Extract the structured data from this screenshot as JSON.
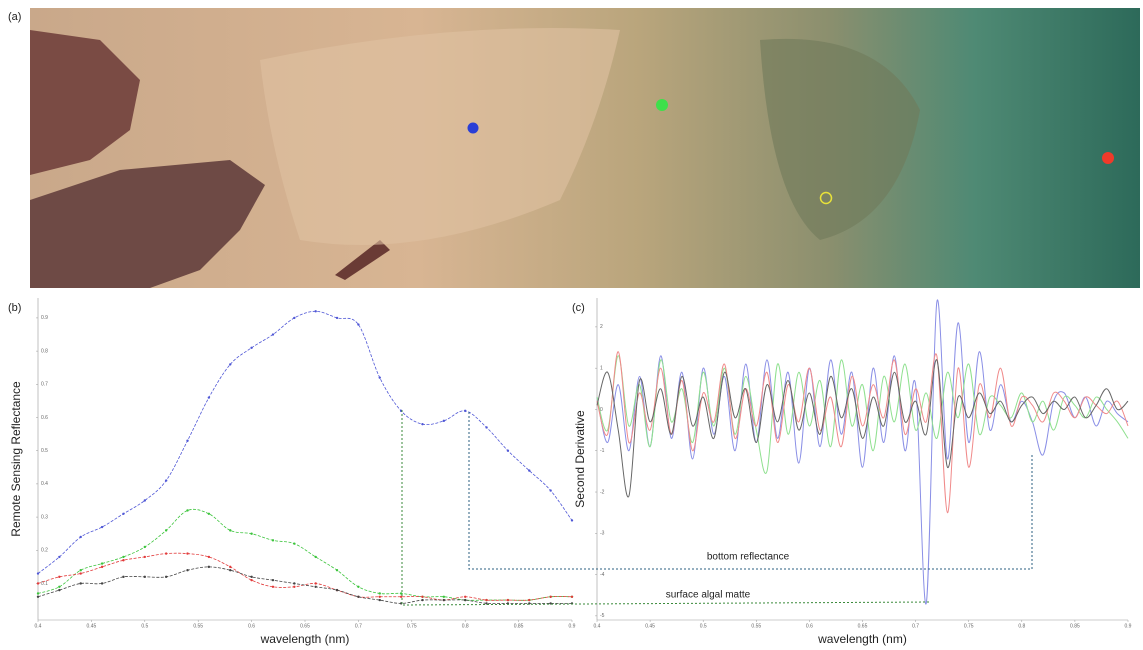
{
  "image_panel": {
    "label": "(a)"
  },
  "chart_data": [
    {
      "type": "line",
      "label": "(b)",
      "xlabel": "wavelength (nm)",
      "ylabel": "Remote Sensing Reflectance",
      "x": [
        0.4,
        0.42,
        0.44,
        0.46,
        0.48,
        0.5,
        0.52,
        0.54,
        0.56,
        0.58,
        0.6,
        0.62,
        0.64,
        0.66,
        0.68,
        0.7,
        0.72,
        0.74,
        0.76,
        0.78,
        0.8,
        0.82,
        0.84,
        0.86,
        0.88,
        0.9
      ],
      "xlim": [
        0.4,
        0.9
      ],
      "xticks": [
        0.4,
        0.45,
        0.5,
        0.55,
        0.6,
        0.65,
        0.7,
        0.75,
        0.8,
        0.85,
        0.9
      ],
      "ylim": [
        -0.01,
        0.96
      ],
      "yticks": [
        0.1,
        0.2,
        0.3,
        0.4,
        0.5,
        0.6,
        0.7,
        0.8,
        0.9
      ],
      "markers": true,
      "series": [
        {
          "color": "#4f57d6",
          "values": [
            0.13,
            0.18,
            0.24,
            0.27,
            0.31,
            0.35,
            0.41,
            0.53,
            0.66,
            0.76,
            0.81,
            0.85,
            0.9,
            0.92,
            0.9,
            0.88,
            0.72,
            0.62,
            0.58,
            0.59,
            0.62,
            0.57,
            0.5,
            0.44,
            0.38,
            0.29
          ]
        },
        {
          "color": "#3cc43c",
          "values": [
            0.07,
            0.09,
            0.14,
            0.16,
            0.18,
            0.21,
            0.26,
            0.32,
            0.31,
            0.26,
            0.25,
            0.23,
            0.22,
            0.18,
            0.14,
            0.09,
            0.07,
            0.07,
            0.06,
            0.06,
            0.05,
            0.05,
            0.05,
            0.05,
            0.06,
            0.06
          ]
        },
        {
          "color": "#e23a3a",
          "values": [
            0.1,
            0.12,
            0.13,
            0.15,
            0.17,
            0.18,
            0.19,
            0.19,
            0.18,
            0.15,
            0.11,
            0.09,
            0.09,
            0.1,
            0.08,
            0.06,
            0.06,
            0.06,
            0.06,
            0.05,
            0.06,
            0.05,
            0.05,
            0.05,
            0.06,
            0.06
          ]
        },
        {
          "color": "#444444",
          "values": [
            0.06,
            0.08,
            0.1,
            0.1,
            0.12,
            0.12,
            0.12,
            0.14,
            0.15,
            0.14,
            0.12,
            0.11,
            0.1,
            0.09,
            0.08,
            0.06,
            0.05,
            0.04,
            0.05,
            0.05,
            0.05,
            0.04,
            0.04,
            0.04,
            0.04,
            0.04
          ]
        }
      ]
    },
    {
      "type": "line",
      "label": "(c)",
      "xlabel": "wavelength (nm)",
      "ylabel": "Second Derivative",
      "x": [
        0.4,
        0.41,
        0.42,
        0.43,
        0.44,
        0.45,
        0.46,
        0.47,
        0.48,
        0.49,
        0.5,
        0.51,
        0.52,
        0.53,
        0.54,
        0.55,
        0.56,
        0.57,
        0.58,
        0.59,
        0.6,
        0.61,
        0.62,
        0.63,
        0.64,
        0.65,
        0.66,
        0.67,
        0.68,
        0.69,
        0.7,
        0.71,
        0.72,
        0.73,
        0.74,
        0.75,
        0.76,
        0.77,
        0.78,
        0.79,
        0.8,
        0.81,
        0.82,
        0.83,
        0.84,
        0.85,
        0.86,
        0.87,
        0.88,
        0.89,
        0.9
      ],
      "xlim": [
        0.4,
        0.9
      ],
      "xticks": [
        0.4,
        0.45,
        0.5,
        0.55,
        0.6,
        0.65,
        0.7,
        0.75,
        0.8,
        0.85,
        0.9
      ],
      "ylim": [
        -5.1,
        2.7
      ],
      "yticks": [
        -5,
        -4,
        -3,
        -2,
        -1,
        0,
        1,
        2
      ],
      "markers": false,
      "annotations": [
        {
          "text": "bottom reflectance",
          "color": "#2b6f99"
        },
        {
          "text": "surface algal matte",
          "color": "#5a9e3a"
        }
      ],
      "series": [
        {
          "color": "#8a8fe6",
          "values": [
            0.3,
            -0.8,
            0.6,
            -1.0,
            0.8,
            -0.9,
            1.3,
            -0.7,
            0.9,
            -1.2,
            1.0,
            -0.6,
            0.8,
            -1.0,
            1.1,
            -0.8,
            1.2,
            -0.7,
            0.9,
            -1.3,
            1.0,
            -0.9,
            1.2,
            -0.6,
            0.9,
            -1.4,
            1.0,
            -0.8,
            1.3,
            -1.0,
            0.6,
            -4.7,
            2.6,
            -1.2,
            2.1,
            -0.8,
            1.4,
            -0.5,
            0.6,
            -0.3,
            0.2,
            -0.3,
            -1.1,
            0.2,
            0.4,
            -0.2,
            0.3,
            -0.4,
            0.2,
            -0.1,
            -0.3
          ]
        },
        {
          "color": "#8fe08f",
          "values": [
            0.3,
            -0.5,
            1.3,
            -0.4,
            0.6,
            -0.9,
            1.2,
            -0.3,
            0.5,
            -0.8,
            0.9,
            -0.4,
            1.0,
            -0.6,
            0.8,
            -0.5,
            -1.5,
            1.1,
            -0.6,
            0.9,
            -0.4,
            0.7,
            -0.9,
            1.2,
            -0.4,
            0.6,
            -1.0,
            0.8,
            -0.3,
            1.1,
            -0.5,
            0.4,
            -0.7,
            0.9,
            -0.2,
            1.1,
            -0.6,
            0.3,
            0.1,
            -0.2,
            0.4,
            -0.3,
            0.2,
            -0.5,
            0.3,
            0.1,
            -0.2,
            0.3,
            0.0,
            -0.3,
            -0.7
          ]
        },
        {
          "color": "#f08a8a",
          "values": [
            0.2,
            -0.6,
            1.4,
            -0.8,
            0.4,
            -0.5,
            1.0,
            -0.6,
            0.7,
            -1.0,
            0.4,
            -0.3,
            1.1,
            -0.7,
            0.5,
            -0.4,
            0.9,
            -0.8,
            0.6,
            -0.3,
            1.0,
            -0.5,
            0.3,
            -0.9,
            0.8,
            -0.4,
            0.6,
            -0.2,
            1.2,
            -0.6,
            0.5,
            -0.3,
            1.3,
            -2.5,
            1.0,
            -1.4,
            0.6,
            -0.2,
            1.0,
            -0.4,
            0.3,
            0.1,
            -0.3,
            0.4,
            0.2,
            -0.2,
            0.3,
            0.1,
            -0.1,
            0.2,
            -0.4
          ]
        },
        {
          "color": "#666666",
          "values": [
            0.1,
            0.9,
            -0.5,
            -2.1,
            0.7,
            -0.3,
            0.5,
            -0.6,
            0.8,
            -0.4,
            0.3,
            -0.7,
            0.9,
            -0.2,
            0.5,
            -0.8,
            0.6,
            -0.3,
            0.7,
            -0.5,
            0.4,
            -0.6,
            0.8,
            -0.2,
            0.5,
            -0.7,
            0.3,
            -0.4,
            0.9,
            -0.3,
            0.2,
            -0.6,
            1.2,
            -1.4,
            0.3,
            -0.2,
            0.4,
            -0.1,
            0.2,
            -0.3,
            0.1,
            0.3,
            -0.1,
            0.2,
            0.0,
            0.3,
            -0.2,
            0.1,
            0.5,
            0.0,
            0.2
          ]
        }
      ]
    }
  ]
}
